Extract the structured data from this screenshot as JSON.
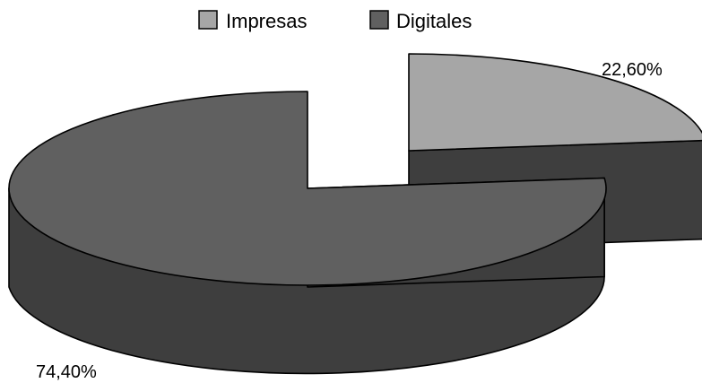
{
  "chart_data": {
    "type": "pie",
    "style": "3d-exploded",
    "title": "",
    "legend_position": "top",
    "series": [
      {
        "name": "Impresas",
        "label": "22,60%",
        "value": 22.6
      },
      {
        "name": "Digitales",
        "label": "74,40%",
        "value": 74.4
      }
    ],
    "colors": {
      "Impresas_top": "#a6a6a6",
      "Digitales_top": "#606060",
      "side": "#3e3e3e",
      "outline": "#000000"
    }
  }
}
